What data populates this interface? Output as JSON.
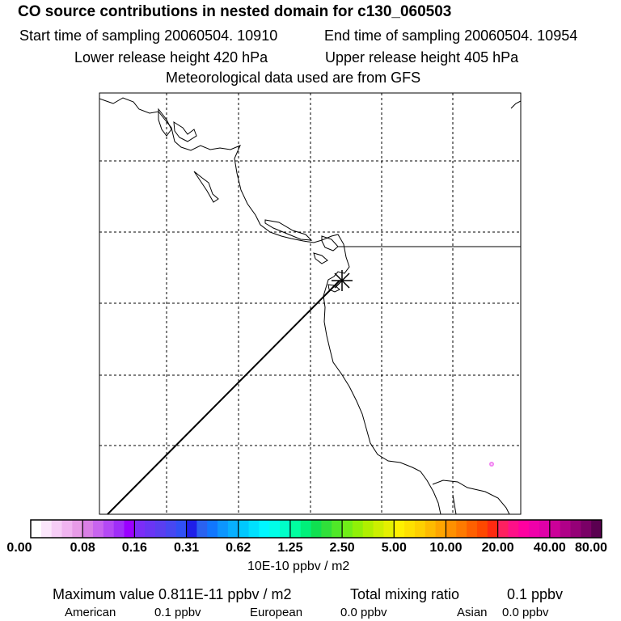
{
  "header": {
    "title": "CO  source contributions in nested domain for c130_060503",
    "start_label": "Start time of sampling 20060504. 10910",
    "end_label": "End time of sampling 20060504. 10954",
    "lower_label": "Lower release height  420 hPa",
    "upper_label": "Upper release height  405 hPa",
    "met_label": "Meteorological data used are from GFS"
  },
  "colorbar": {
    "tick_labels": [
      "0.00",
      "0.08",
      "0.16",
      "0.31",
      "0.62",
      "1.25",
      "2.50",
      "5.00",
      "10.00",
      "20.00",
      "40.00",
      "80.00"
    ],
    "units": "10E-10 ppbv / m2",
    "colors": [
      "#ffffff",
      "#fbe6fb",
      "#f6cdf6",
      "#f0b4f0",
      "#e79be7",
      "#d97fe6",
      "#c864ee",
      "#b449f4",
      "#a02ef8",
      "#9a00ff",
      "#7b2df7",
      "#6a35f4",
      "#5a3ef0",
      "#4747f2",
      "#3050f6",
      "#1f1fe8",
      "#2a62f0",
      "#1177ff",
      "#0d96ff",
      "#08b0ff",
      "#00c8ff",
      "#00e0ff",
      "#00f7ff",
      "#00ffe8",
      "#00ffc8",
      "#00ffa0",
      "#00f07a",
      "#10e050",
      "#30e03a",
      "#50e828",
      "#70ee18",
      "#90f008",
      "#b0f000",
      "#ccf000",
      "#e4f000",
      "#fff000",
      "#ffe000",
      "#ffd000",
      "#ffbb00",
      "#ffa500",
      "#ff9000",
      "#ff7a00",
      "#ff6000",
      "#ff4800",
      "#ff2a10",
      "#ff2060",
      "#ff1088",
      "#ff00a0",
      "#f000aa",
      "#e000a8",
      "#cc0099",
      "#b00088",
      "#950077",
      "#7a0066",
      "#5a0050"
    ]
  },
  "stats": {
    "max_label": "Maximum value  0.811E-11 ppbv / m2",
    "total_label": "Total mixing ratio",
    "total_value": "0.1 ppbv",
    "american_label": "American",
    "american_value": "0.1 ppbv",
    "european_label": "European",
    "european_value": "0.0 ppbv",
    "asian_label": "Asian",
    "asian_value": "0.0 ppbv"
  }
}
